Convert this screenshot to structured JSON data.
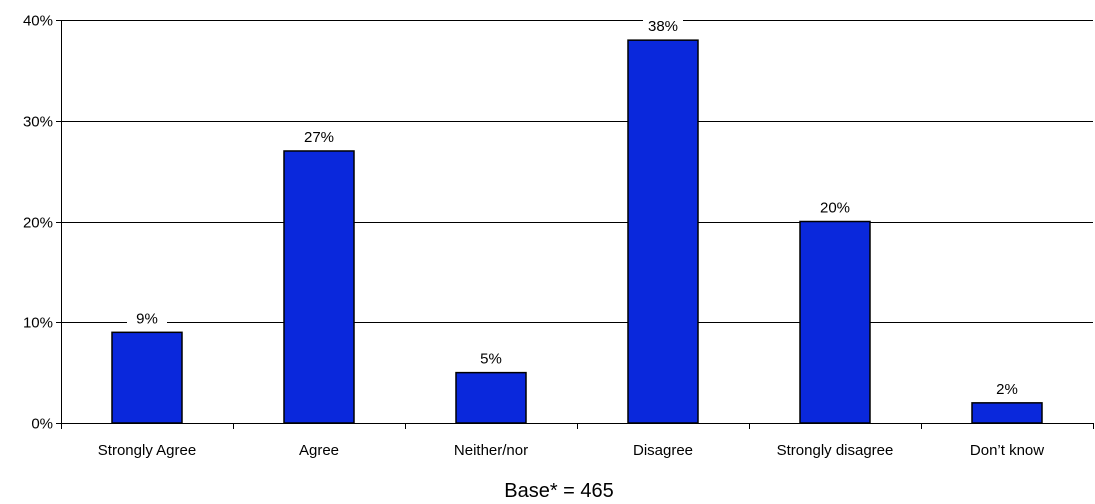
{
  "chart_data": {
    "type": "bar",
    "categories": [
      "Strongly Agree",
      "Agree",
      "Neither/nor",
      "Disagree",
      "Strongly disagree",
      "Don’t know"
    ],
    "values": [
      9,
      27,
      5,
      38,
      20,
      2
    ],
    "value_labels": [
      "9%",
      "27%",
      "5%",
      "38%",
      "20%",
      "2%"
    ],
    "yticks": [
      0,
      10,
      20,
      30,
      40
    ],
    "ytick_labels": [
      "0%",
      "10%",
      "20%",
      "30%",
      "40%"
    ],
    "ylim": [
      0,
      40
    ],
    "grid": true,
    "legend": "none",
    "title": "",
    "xlabel": "",
    "ylabel": "",
    "note": "Base* = 465",
    "colors": {
      "bar_fill": "#0a28dc",
      "bar_stroke": "#000000",
      "grid": "#000000",
      "axis": "#000000"
    }
  }
}
